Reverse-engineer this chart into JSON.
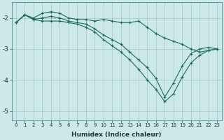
{
  "xlabel": "Humidex (Indice chaleur)",
  "ylabel": "",
  "background_color": "#cce8e8",
  "grid_color": "#aacccc",
  "line_color": "#1a6b5a",
  "xlim": [
    -0.5,
    23.5
  ],
  "ylim": [
    -5.3,
    -1.5
  ],
  "yticks": [
    -5,
    -4,
    -3,
    -2
  ],
  "xticks": [
    0,
    1,
    2,
    3,
    4,
    5,
    6,
    7,
    8,
    9,
    10,
    11,
    12,
    13,
    14,
    15,
    16,
    17,
    18,
    19,
    20,
    21,
    22,
    23
  ],
  "line1_x": [
    0,
    1,
    2,
    3,
    4,
    5,
    6,
    7,
    8,
    9,
    10,
    11,
    12,
    13,
    14,
    15,
    16,
    17,
    18,
    19,
    20,
    21,
    22,
    23
  ],
  "line1_y": [
    -2.15,
    -1.9,
    -2.0,
    -1.85,
    -1.8,
    -1.85,
    -2.0,
    -2.05,
    -2.05,
    -2.1,
    -2.05,
    -2.1,
    -2.15,
    -2.15,
    -2.1,
    -2.3,
    -2.5,
    -2.65,
    -2.75,
    -2.85,
    -3.0,
    -3.1,
    -3.05,
    -3.0
  ],
  "line2_x": [
    0,
    1,
    2,
    3,
    4,
    5,
    6,
    7,
    8,
    9,
    10,
    11,
    12,
    13,
    14,
    15,
    16,
    17,
    18,
    19,
    20,
    21,
    22,
    23
  ],
  "line2_y": [
    -2.15,
    -1.9,
    -2.05,
    -2.0,
    -1.95,
    -2.0,
    -2.1,
    -2.15,
    -2.2,
    -2.35,
    -2.55,
    -2.7,
    -2.85,
    -3.1,
    -3.35,
    -3.6,
    -3.95,
    -4.55,
    -4.1,
    -3.55,
    -3.15,
    -3.0,
    -2.95,
    -3.0
  ],
  "line3_x": [
    0,
    1,
    2,
    3,
    4,
    5,
    6,
    7,
    8,
    9,
    10,
    11,
    12,
    13,
    14,
    15,
    16,
    17,
    18,
    19,
    20,
    21,
    22,
    23
  ],
  "line3_y": [
    -2.15,
    -1.9,
    -2.05,
    -2.1,
    -2.1,
    -2.1,
    -2.15,
    -2.2,
    -2.3,
    -2.45,
    -2.7,
    -2.9,
    -3.1,
    -3.35,
    -3.65,
    -4.0,
    -4.3,
    -4.7,
    -4.45,
    -3.9,
    -3.45,
    -3.2,
    -3.05,
    -3.0
  ]
}
